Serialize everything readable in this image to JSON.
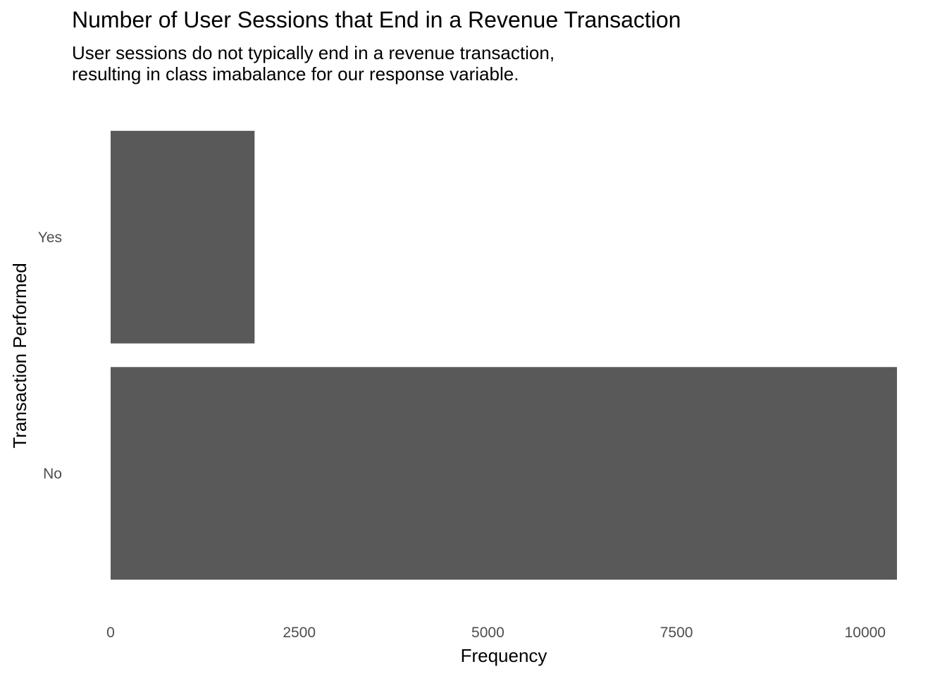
{
  "chart_data": {
    "type": "bar",
    "orientation": "horizontal",
    "title": "Number of User Sessions that End in a Revenue Transaction",
    "subtitle": [
      "User sessions do not typically end in a revenue transaction,",
      "resulting in class imabalance for our response variable."
    ],
    "xlabel": "Frequency",
    "ylabel": "Transaction Performed",
    "categories": [
      "No",
      "Yes"
    ],
    "values": [
      10422,
      1908
    ],
    "xlim": [
      0,
      10422
    ],
    "x_ticks": [
      0,
      2500,
      5000,
      7500,
      10000
    ],
    "x_tick_labels": [
      "0",
      "2500",
      "5000",
      "7500",
      "10000"
    ],
    "grid": false,
    "legend": "none",
    "bar_color": "#595959"
  }
}
